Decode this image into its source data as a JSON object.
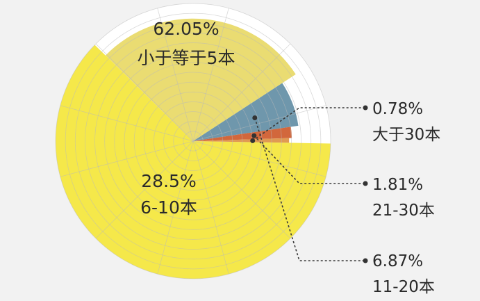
{
  "chart_data": {
    "type": "pie",
    "variant": "rose",
    "grid": true,
    "series": [
      {
        "label": "小于等于5本",
        "percent_text": "62.05%",
        "value": 62.05,
        "color": "#f5e84a"
      },
      {
        "label": "6-10本",
        "percent_text": "28.5%",
        "value": 28.5,
        "color": "#eadc72"
      },
      {
        "label": "11-20本",
        "percent_text": "6.87%",
        "value": 6.87,
        "color": "#6f97ac"
      },
      {
        "label": "21-30本",
        "percent_text": "1.81%",
        "value": 1.81,
        "color": "#d2673c"
      },
      {
        "label": "大于30本",
        "percent_text": "0.78%",
        "value": 0.78,
        "color": "#e09a53"
      }
    ]
  }
}
